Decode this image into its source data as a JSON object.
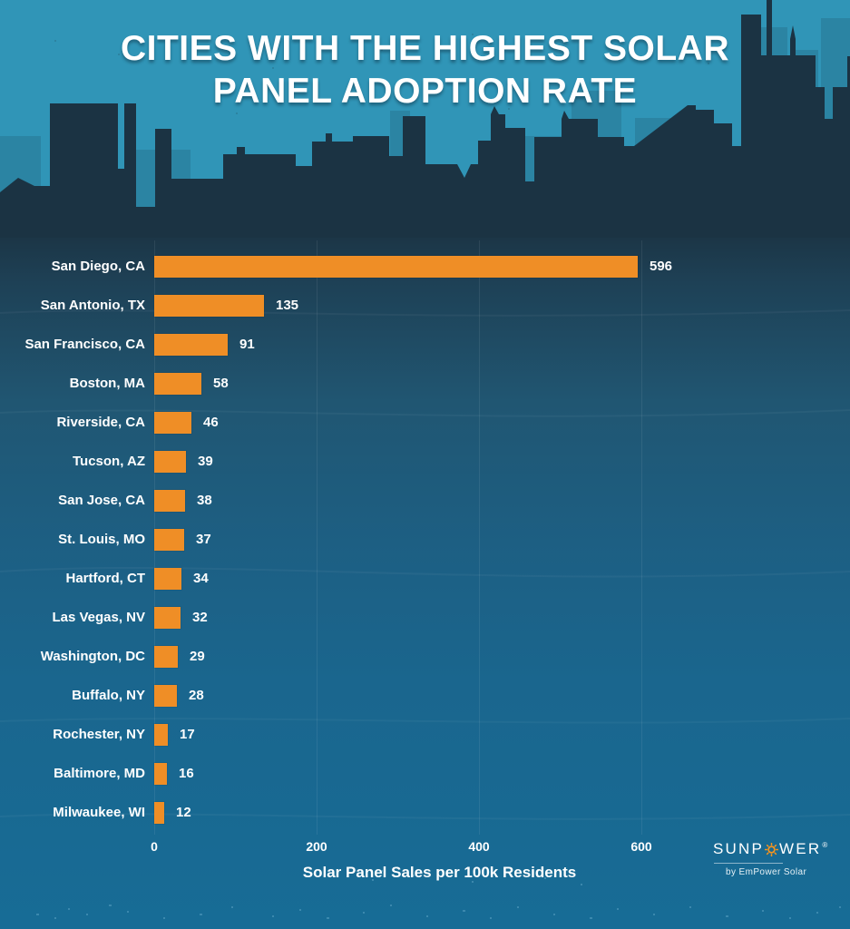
{
  "title": "CITIES WITH THE HIGHEST SOLAR\nPANEL  ADOPTION RATE",
  "chart_data": {
    "type": "bar",
    "orientation": "horizontal",
    "categories": [
      "San Diego, CA",
      "San Antonio, TX",
      "San Francisco, CA",
      "Boston, MA",
      "Riverside, CA",
      "Tucson, AZ",
      "San Jose, CA",
      "St. Louis, MO",
      "Hartford, CT",
      "Las Vegas, NV",
      "Washington, DC",
      "Buffalo, NY",
      "Rochester, NY",
      "Baltimore, MD",
      "Milwaukee, WI"
    ],
    "values": [
      596,
      135,
      91,
      58,
      46,
      39,
      38,
      37,
      34,
      32,
      29,
      28,
      17,
      16,
      12
    ],
    "title": "Cities with the Highest Solar Panel Adoption Rate",
    "xlabel": "Solar Panel Sales per 100k Residents",
    "ylabel": "",
    "x_ticks": [
      0,
      200,
      400,
      600
    ],
    "xlim": [
      0,
      600
    ],
    "grid": "faint vertical gridlines at ticks",
    "bar_color": "#EF8E26",
    "value_labels": "right of each bar"
  },
  "footer": {
    "brand_left": "SUNP",
    "brand_right": "WER",
    "registered": "®",
    "byline": "by EmPower Solar",
    "sun_icon": "orange sun ring replacing the O"
  },
  "colors": {
    "sky": "#3095B7",
    "skyline_back": "#2B84A3",
    "silhouette": "#1B3343",
    "background_top": "#1B3343",
    "background_bottom": "#176C96",
    "bar": "#EF8E26",
    "text": "#FFFFFF",
    "sun": "#F7941D"
  }
}
